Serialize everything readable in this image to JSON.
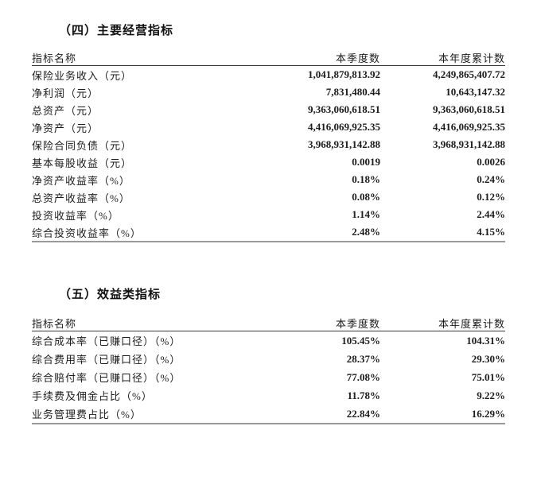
{
  "page": {
    "background": "#ffffff",
    "text_color": "#1c1c1c",
    "header_rule_color": "#3a3a3a",
    "bottom_rule_color": "#9a9a9a"
  },
  "sections": [
    {
      "title": "（四）主要经营指标",
      "columns": [
        "指标名称",
        "本季度数",
        "本年度累计数"
      ],
      "rows": [
        [
          "保险业务收入（元）",
          "1,041,879,813.92",
          "4,249,865,407.72"
        ],
        [
          "净利润（元）",
          "7,831,480.44",
          "10,643,147.32"
        ],
        [
          "总资产（元）",
          "9,363,060,618.51",
          "9,363,060,618.51"
        ],
        [
          "净资产（元）",
          "4,416,069,925.35",
          "4,416,069,925.35"
        ],
        [
          "保险合同负债（元）",
          "3,968,931,142.88",
          "3,968,931,142.88"
        ],
        [
          "基本每股收益（元）",
          "0.0019",
          "0.0026"
        ],
        [
          "净资产收益率（%）",
          "0.18%",
          "0.24%"
        ],
        [
          "总资产收益率（%）",
          "0.08%",
          "0.12%"
        ],
        [
          "投资收益率（%）",
          "1.14%",
          "2.44%"
        ],
        [
          "综合投资收益率（%）",
          "2.48%",
          "4.15%"
        ]
      ]
    },
    {
      "title": "（五）效益类指标",
      "columns": [
        "指标名称",
        "本季度数",
        "本年度累计数"
      ],
      "rows": [
        [
          "综合成本率（已赚口径）（%）",
          "105.45%",
          "104.31%"
        ],
        [
          "综合费用率（已赚口径）（%）",
          "28.37%",
          "29.30%"
        ],
        [
          "综合赔付率（已赚口径）（%）",
          "77.08%",
          "75.01%"
        ],
        [
          "手续费及佣金占比（%）",
          "11.78%",
          "9.22%"
        ],
        [
          "业务管理费占比（%）",
          "22.84%",
          "16.29%"
        ]
      ]
    }
  ]
}
